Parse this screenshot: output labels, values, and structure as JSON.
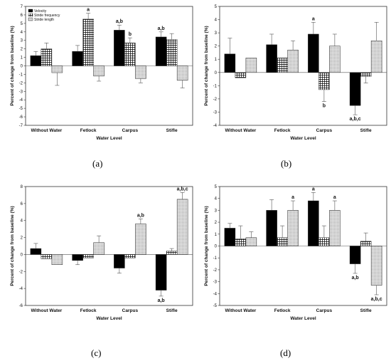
{
  "chart_data": [
    {
      "panel_label": "(a)",
      "type": "bar",
      "xlabel": "Water Level",
      "ylabel": "Percent of change from baseline (%)",
      "ylim": [
        -7,
        7
      ],
      "yticks": [
        -7,
        -6,
        -5,
        -4,
        -3,
        -2,
        -1,
        0,
        1,
        2,
        3,
        4,
        5,
        6,
        7
      ],
      "categories": [
        "Without Water",
        "Fetlock",
        "Carpus",
        "Stifle"
      ],
      "legend": true,
      "legend_position": "top-left",
      "series": [
        {
          "name": "Velocity",
          "values": [
            1.2,
            1.7,
            4.2,
            3.4
          ],
          "errors": [
            0.5,
            0.7,
            0.6,
            0.6
          ]
        },
        {
          "name": "Stride frequency",
          "values": [
            2.0,
            5.5,
            2.7,
            3.1
          ],
          "errors": [
            0.7,
            0.7,
            0.6,
            0.7
          ]
        },
        {
          "name": "Stride length",
          "values": [
            -0.8,
            -1.2,
            -1.5,
            -1.7
          ],
          "errors": [
            1.5,
            0.6,
            0.5,
            0.9
          ]
        }
      ],
      "annotations": [
        {
          "category": "Fetlock",
          "series": 1,
          "text": "a"
        },
        {
          "category": "Carpus",
          "series": 0,
          "text": "a,b"
        },
        {
          "category": "Carpus",
          "series": 1,
          "text": "b"
        },
        {
          "category": "Stifle",
          "series": 0,
          "text": "a,b"
        }
      ]
    },
    {
      "panel_label": "(b)",
      "type": "bar",
      "xlabel": "Water Level",
      "ylabel": "Percent of change from baseline (%)",
      "ylim": [
        -4,
        5
      ],
      "yticks": [
        -4,
        -3,
        -2,
        -1,
        0,
        1,
        2,
        3,
        4,
        5
      ],
      "categories": [
        "Without Water",
        "Fetlock",
        "Carpus",
        "Stifle"
      ],
      "legend": false,
      "series": [
        {
          "name": "Velocity",
          "values": [
            1.4,
            2.1,
            2.9,
            -2.5
          ],
          "errors": [
            1.2,
            0.8,
            0.9,
            0.7
          ]
        },
        {
          "name": "Stride frequency",
          "values": [
            -0.4,
            1.1,
            -1.3,
            -0.3
          ],
          "errors": [
            0.0,
            0.0,
            0.9,
            0.5
          ]
        },
        {
          "name": "Stride length",
          "values": [
            1.1,
            1.7,
            2.0,
            2.4
          ],
          "errors": [
            0.0,
            0.7,
            0.9,
            1.4
          ]
        }
      ],
      "annotations": [
        {
          "category": "Carpus",
          "series": 0,
          "text": "a"
        },
        {
          "category": "Carpus",
          "series": 1,
          "text": "b"
        },
        {
          "category": "Stifle",
          "series": 0,
          "text": "a,b,c"
        }
      ]
    },
    {
      "panel_label": "(c)",
      "type": "bar",
      "xlabel": "Water Level",
      "ylabel": "Percent of change from baseline (%)",
      "ylim": [
        -6,
        8
      ],
      "yticks": [
        -6,
        -4,
        -2,
        0,
        2,
        4,
        6,
        8
      ],
      "categories": [
        "Without Water",
        "Fetlock",
        "Carpus",
        "Stifle"
      ],
      "legend": false,
      "series": [
        {
          "name": "Velocity",
          "values": [
            0.7,
            -0.7,
            -1.6,
            -4.2
          ],
          "errors": [
            0.6,
            0.5,
            0.6,
            0.7
          ]
        },
        {
          "name": "Stride frequency",
          "values": [
            -0.5,
            -0.4,
            -0.4,
            0.4
          ],
          "errors": [
            0.0,
            0.0,
            0.0,
            0.3
          ]
        },
        {
          "name": "Stride length",
          "values": [
            -1.2,
            1.4,
            3.6,
            6.5
          ],
          "errors": [
            0.0,
            0.8,
            0.6,
            0.8
          ]
        }
      ],
      "annotations": [
        {
          "category": "Carpus",
          "series": 2,
          "text": "a,b"
        },
        {
          "category": "Stifle",
          "series": 2,
          "text": "a,b,c"
        },
        {
          "category": "Stifle",
          "series": 0,
          "text": "a,b"
        }
      ]
    },
    {
      "panel_label": "(d)",
      "type": "bar",
      "xlabel": "Water Level",
      "ylabel": "Percent of change from baseline (%)",
      "ylim": [
        -5,
        5
      ],
      "yticks": [
        -5,
        -4,
        -3,
        -2,
        -1,
        0,
        1,
        2,
        3,
        4,
        5
      ],
      "categories": [
        "Without Water",
        "Fetlock",
        "Carpus",
        "Stifle"
      ],
      "legend": false,
      "series": [
        {
          "name": "Velocity",
          "values": [
            1.5,
            3.0,
            3.8,
            -1.5
          ],
          "errors": [
            0.4,
            0.9,
            0.7,
            0.8
          ]
        },
        {
          "name": "Stride frequency",
          "values": [
            0.6,
            0.7,
            0.7,
            0.4
          ],
          "errors": [
            1.1,
            1.0,
            1.0,
            0.7
          ]
        },
        {
          "name": "Stride length",
          "values": [
            0.7,
            3.0,
            3.0,
            -3.3
          ],
          "errors": [
            0.5,
            0.8,
            0.8,
            0.8
          ]
        }
      ],
      "annotations": [
        {
          "category": "Fetlock",
          "series": 2,
          "text": "a"
        },
        {
          "category": "Carpus",
          "series": 0,
          "text": "a"
        },
        {
          "category": "Carpus",
          "series": 2,
          "text": "a"
        },
        {
          "category": "Stifle",
          "series": 0,
          "text": "a,b"
        },
        {
          "category": "Stifle",
          "series": 2,
          "text": "a,b,c"
        }
      ]
    }
  ]
}
